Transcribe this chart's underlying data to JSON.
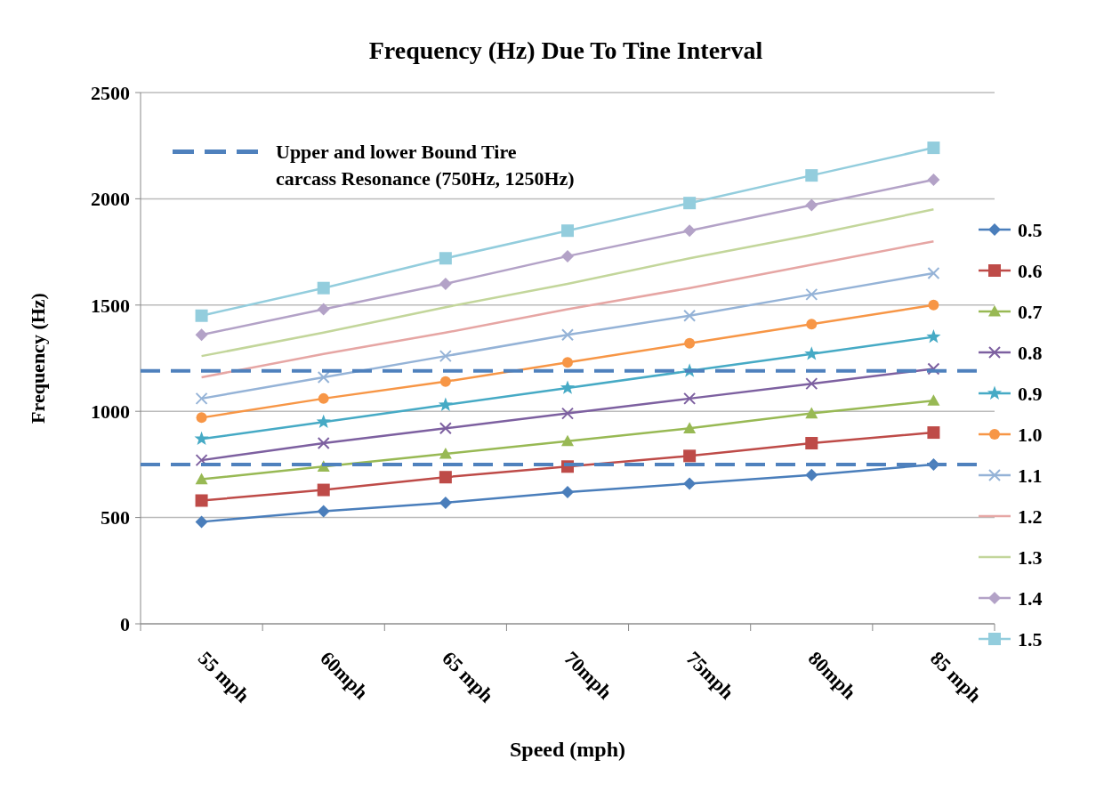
{
  "chart_data": {
    "type": "line",
    "title": "Frequency (Hz) Due To Tine Interval",
    "xlabel": "Speed (mph)",
    "ylabel": "Frequency (Hz)",
    "categories": [
      "55 mph",
      "60mph",
      "65 mph",
      "70mph",
      "75mph",
      "80mph",
      "85 mph"
    ],
    "ylim": [
      0,
      2500
    ],
    "yticks": [
      0,
      500,
      1000,
      1500,
      2000,
      2500
    ],
    "grid": "y",
    "legend": "right",
    "ref_lines": [
      {
        "axis": "y",
        "value": 1190,
        "label": "Upper and lower Bound Tire carcass Resonance (750Hz, 1250Hz)",
        "color": "#4f81bd",
        "line_style": "dashed"
      },
      {
        "axis": "y",
        "value": 750,
        "label": null,
        "color": "#4f81bd",
        "line_style": "dashed"
      }
    ],
    "series": [
      {
        "name": "0.5",
        "color": "#4a7ebb",
        "marker": "diamond",
        "values": [
          480,
          530,
          570,
          620,
          660,
          700,
          750
        ]
      },
      {
        "name": "0.6",
        "color": "#be4b48",
        "marker": "square",
        "values": [
          580,
          630,
          690,
          740,
          790,
          850,
          900
        ]
      },
      {
        "name": "0.7",
        "color": "#98b954",
        "marker": "triangle",
        "values": [
          680,
          740,
          800,
          860,
          920,
          990,
          1050
        ]
      },
      {
        "name": "0.8",
        "color": "#7d60a0",
        "marker": "cross",
        "values": [
          770,
          850,
          920,
          990,
          1060,
          1130,
          1200
        ]
      },
      {
        "name": "0.9",
        "color": "#46aac5",
        "marker": "star",
        "values": [
          870,
          950,
          1030,
          1110,
          1190,
          1270,
          1350
        ]
      },
      {
        "name": "1.0",
        "color": "#f79646",
        "marker": "circle",
        "values": [
          970,
          1060,
          1140,
          1230,
          1320,
          1410,
          1500
        ]
      },
      {
        "name": "1.1",
        "color": "#95b3d7",
        "marker": "cross",
        "values": [
          1060,
          1160,
          1260,
          1360,
          1450,
          1550,
          1650
        ]
      },
      {
        "name": "1.2",
        "color": "#e6a6a4",
        "marker": "none",
        "values": [
          1160,
          1270,
          1370,
          1480,
          1580,
          1690,
          1800
        ]
      },
      {
        "name": "1.3",
        "color": "#c3d69b",
        "marker": "none",
        "values": [
          1260,
          1370,
          1490,
          1600,
          1720,
          1830,
          1950
        ]
      },
      {
        "name": "1.4",
        "color": "#b3a2c7",
        "marker": "diamond",
        "values": [
          1360,
          1480,
          1600,
          1730,
          1850,
          1970,
          2090
        ]
      },
      {
        "name": "1.5",
        "color": "#93cddd",
        "marker": "square",
        "values": [
          1450,
          1580,
          1720,
          1850,
          1980,
          2110,
          2240
        ]
      }
    ]
  }
}
